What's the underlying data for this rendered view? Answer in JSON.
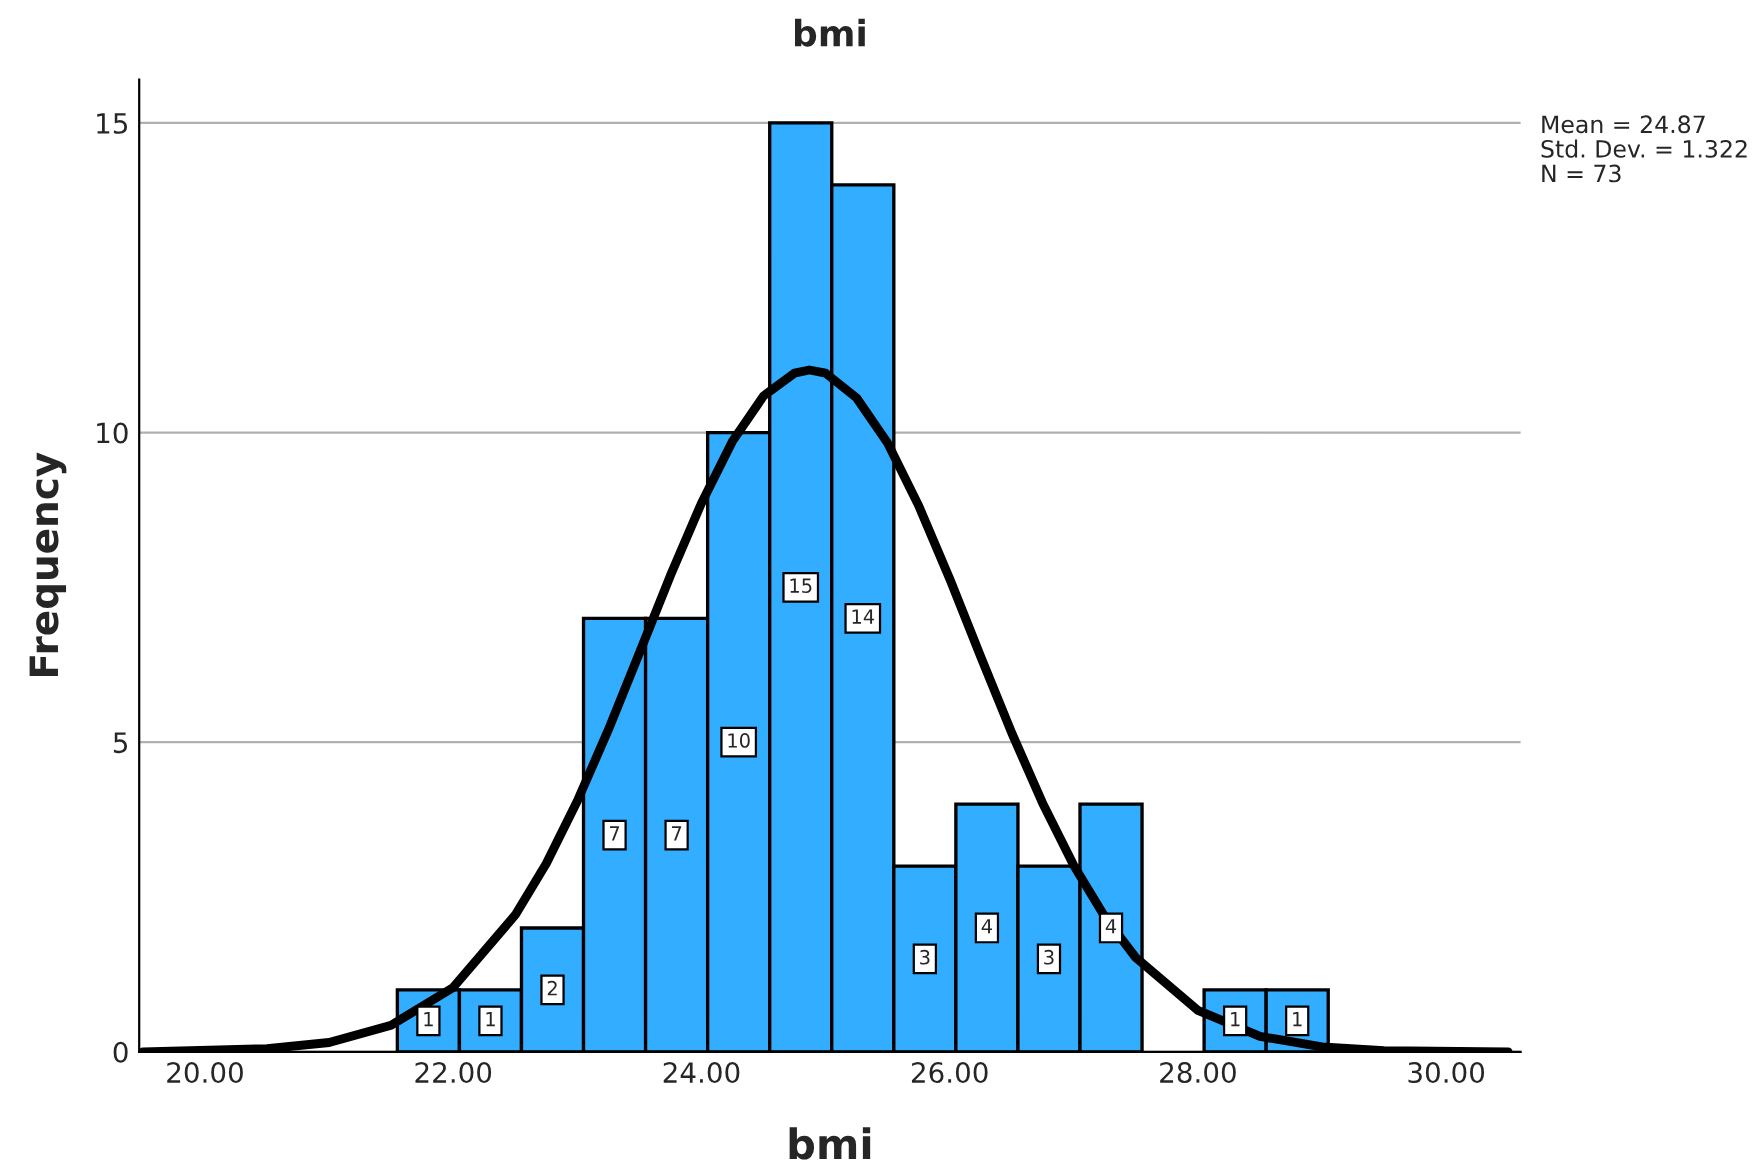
{
  "chart_data": {
    "type": "histogram",
    "title": "bmi",
    "xlabel": "bmi",
    "ylabel": "Frequency",
    "annotations": [
      "Mean = 24.87",
      "Std. Dev. = 1.322",
      "N = 73"
    ],
    "bins": [
      21.55,
      22.05,
      22.55,
      23.05,
      23.55,
      24.05,
      24.55,
      25.05,
      25.55,
      26.05,
      26.55,
      27.05,
      27.55,
      28.05,
      28.55,
      29.05
    ],
    "series": [
      {
        "color": "#33adff",
        "values": [
          1,
          1,
          2,
          7,
          7,
          10,
          15,
          14,
          3,
          4,
          3,
          4,
          0,
          1,
          1
        ],
        "value_labels": [
          "1",
          "1",
          "2",
          "7",
          "7",
          "10",
          "15",
          "14",
          "3",
          "4",
          "3",
          "4",
          null,
          "1",
          "1"
        ]
      },
      {
        "type": "line",
        "color": "#000000",
        "x": [
          19.5,
          20.5,
          21,
          21.5,
          22,
          22.5,
          22.75,
          23,
          23.25,
          23.5,
          23.75,
          24,
          24.25,
          24.5,
          24.75,
          24.87,
          25,
          25.25,
          25.5,
          25.75,
          26,
          26.25,
          26.5,
          26.75,
          27,
          27.25,
          27.5,
          28,
          28.5,
          29,
          29.5,
          30.5
        ],
        "values": [
          0.0,
          0.05,
          0.15,
          0.43,
          1.04,
          2.21,
          3.04,
          4.05,
          5.2,
          6.44,
          7.69,
          8.86,
          9.86,
          10.59,
          10.96,
          11.01,
          10.96,
          10.56,
          9.83,
          8.82,
          7.64,
          6.38,
          5.15,
          4.01,
          3.01,
          2.18,
          1.52,
          0.67,
          0.25,
          0.08,
          0.02,
          0.0
        ]
      }
    ],
    "xlim": [
      19.47,
      30.6
    ],
    "ylim": [
      0,
      15.7
    ],
    "xticks": [
      {
        "value": 20,
        "label": "20.00"
      },
      {
        "value": 22,
        "label": "22.00"
      },
      {
        "value": 24,
        "label": "24.00"
      },
      {
        "value": 26,
        "label": "26.00"
      },
      {
        "value": 28,
        "label": "28.00"
      },
      {
        "value": 30,
        "label": "30.00"
      }
    ],
    "yticks": [
      0,
      5,
      10,
      15
    ],
    "grid": "y",
    "legend": false
  }
}
